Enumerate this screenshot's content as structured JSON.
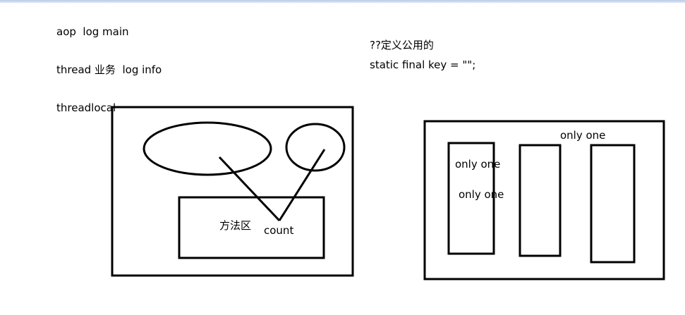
{
  "notes": {
    "line1": "aop  log main",
    "line2": "thread 业务  log info",
    "line3": "threadlocal",
    "line4": "??定义公用的",
    "line5": "static final key = \"\";"
  },
  "left_diagram": {
    "method_area_label": "方法区",
    "count_label": "count"
  },
  "right_diagram": {
    "label_top": "only one",
    "label_col1_a": "only one",
    "label_col1_b": "only one"
  },
  "colors": {
    "stroke": "#000000",
    "background": "#ffffff",
    "window_top_border": "#c8d6ec"
  }
}
